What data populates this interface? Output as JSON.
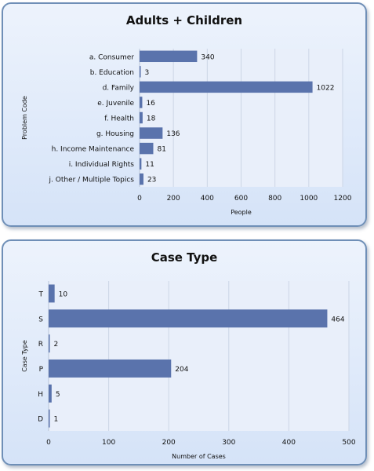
{
  "chart_data": [
    {
      "type": "bar",
      "orientation": "horizontal",
      "title": "Adults + Children",
      "xlabel": "People",
      "ylabel": "Problem Code",
      "categories": [
        "a. Consumer",
        "b. Education",
        "d. Family",
        "e. Juvenile",
        "f. Health",
        "g. Housing",
        "h. Income Maintenance",
        "i. Individual Rights",
        "j. Other / Multiple Topics"
      ],
      "values": [
        340,
        3,
        1022,
        16,
        18,
        136,
        81,
        11,
        23
      ],
      "xlim": [
        0,
        1200
      ],
      "xticks": [
        "0",
        "200",
        "400",
        "600",
        "800",
        "1000",
        "1200"
      ],
      "bar_color": "#5a73ac",
      "grid": true
    },
    {
      "type": "bar",
      "orientation": "horizontal",
      "title": "Case Type",
      "xlabel": "Number of Cases",
      "ylabel": "Case Type",
      "categories": [
        "T",
        "S",
        "R",
        "P",
        "H",
        "D"
      ],
      "values": [
        10,
        464,
        2,
        204,
        5,
        1
      ],
      "xlim": [
        0,
        500
      ],
      "xticks": [
        "0",
        "100",
        "200",
        "300",
        "400",
        "500"
      ],
      "bar_color": "#5a73ac",
      "grid": true
    }
  ]
}
